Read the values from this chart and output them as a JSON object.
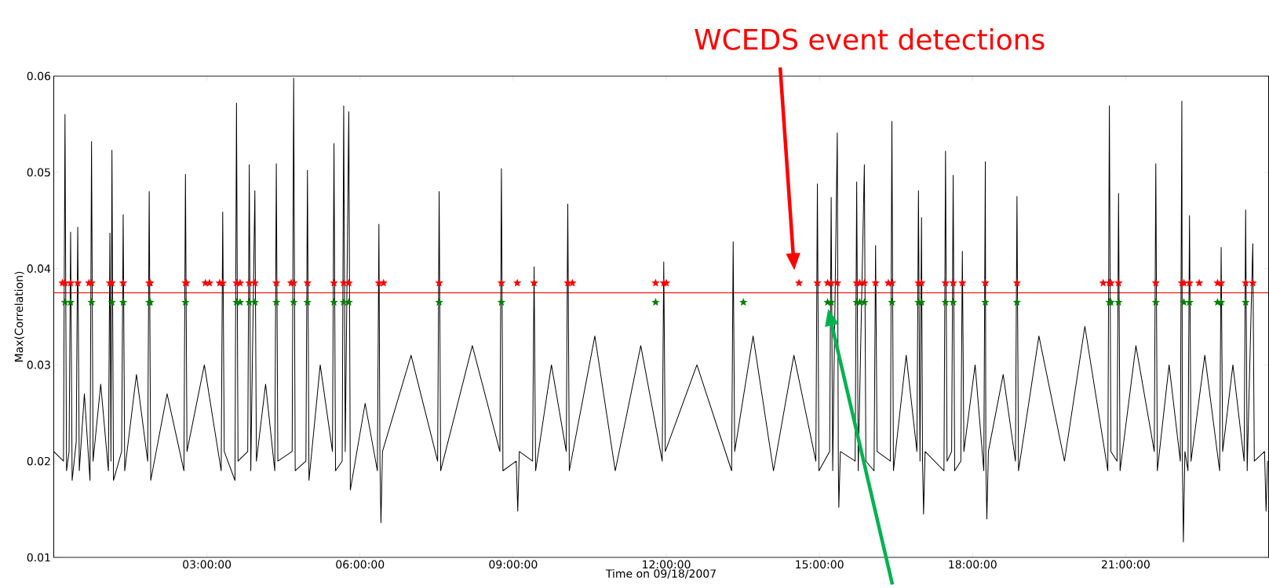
{
  "chart_data": {
    "type": "line",
    "annotations": [
      "WCEDS event detections"
    ],
    "xlabel": "Time on 09/18/2007",
    "ylabel": "Max(Correlation)",
    "xlim": [
      0,
      23.8
    ],
    "ylim": [
      0.01,
      0.06
    ],
    "xticks": [
      {
        "value": 3,
        "label": "03:00:00"
      },
      {
        "value": 6,
        "label": "06:00:00"
      },
      {
        "value": 9,
        "label": "09:00:00"
      },
      {
        "value": 12,
        "label": "12:00:00"
      },
      {
        "value": 15,
        "label": "15:00:00"
      },
      {
        "value": 18,
        "label": "18:00:00"
      },
      {
        "value": 21,
        "label": "21:00:00"
      }
    ],
    "yticks": [
      0.01,
      0.02,
      0.03,
      0.04,
      0.05,
      0.06
    ],
    "grid": false,
    "ref_lines": [
      {
        "axis": "y",
        "value": 0.0375,
        "color": "#ff0000",
        "line_style": "solid"
      }
    ],
    "series": [
      {
        "color": "#000000",
        "x": [
          0,
          0.19,
          0.22,
          0.25,
          0.3,
          0.33,
          0.36,
          0.44,
          0.47,
          0.5,
          0.6,
          0.71,
          0.74,
          0.77,
          0.92,
          1.07,
          1.1,
          1.12,
          1.14,
          1.17,
          1.33,
          1.36,
          1.39,
          1.62,
          1.84,
          1.87,
          1.9,
          2.22,
          2.55,
          2.58,
          2.61,
          2.95,
          3.28,
          3.31,
          3.34,
          3.55,
          3.58,
          3.61,
          3.8,
          3.83,
          3.86,
          3.94,
          3.97,
          4.15,
          4.33,
          4.36,
          4.39,
          4.67,
          4.7,
          4.73,
          4.94,
          4.97,
          5.0,
          5.22,
          5.46,
          5.49,
          5.52,
          5.65,
          5.68,
          5.71,
          5.78,
          5.81,
          6.1,
          6.34,
          6.37,
          6.39,
          6.41,
          6.44,
          7.0,
          7.52,
          7.55,
          7.58,
          8.2,
          8.74,
          8.77,
          8.8,
          9.06,
          9.09,
          9.12,
          9.38,
          9.41,
          9.44,
          9.75,
          10.04,
          10.07,
          10.1,
          10.6,
          11.0,
          11.5,
          11.92,
          11.95,
          11.98,
          12.6,
          13.28,
          13.31,
          13.34,
          13.7,
          14.1,
          14.5,
          14.93,
          14.96,
          14.99,
          15.2,
          15.23,
          15.26,
          15.35,
          15.37,
          15.38,
          15.41,
          15.7,
          15.73,
          15.76,
          15.88,
          15.91,
          16.07,
          16.1,
          16.13,
          16.39,
          16.42,
          16.45,
          16.7,
          16.91,
          16.94,
          16.97,
          17.0,
          17.02,
          17.04,
          17.07,
          17.44,
          17.47,
          17.5,
          17.59,
          17.62,
          17.65,
          17.77,
          17.8,
          17.83,
          18.05,
          18.22,
          18.25,
          18.26,
          18.28,
          18.31,
          18.6,
          18.84,
          18.87,
          18.9,
          19.3,
          19.8,
          20.2,
          20.65,
          20.68,
          20.71,
          20.83,
          20.86,
          20.89,
          21.2,
          21.56,
          21.59,
          21.62,
          21.85,
          22.07,
          22.1,
          22.11,
          22.13,
          22.16,
          22.22,
          22.25,
          22.28,
          22.55,
          22.84,
          22.87,
          22.9,
          23.1,
          23.32,
          23.35,
          23.38,
          23.49,
          23.52,
          23.72,
          23.75,
          23.78
        ],
        "values": [
          0.021,
          0.02,
          0.056,
          0.019,
          0.021,
          0.0438,
          0.018,
          0.022,
          0.0443,
          0.019,
          0.027,
          0.018,
          0.0532,
          0.02,
          0.028,
          0.019,
          0.0437,
          0.02,
          0.0523,
          0.018,
          0.021,
          0.0456,
          0.019,
          0.029,
          0.02,
          0.048,
          0.018,
          0.027,
          0.019,
          0.0498,
          0.021,
          0.03,
          0.019,
          0.0459,
          0.021,
          0.018,
          0.0572,
          0.02,
          0.021,
          0.0508,
          0.019,
          0.0481,
          0.02,
          0.028,
          0.019,
          0.0509,
          0.02,
          0.021,
          0.0598,
          0.019,
          0.02,
          0.0502,
          0.018,
          0.03,
          0.021,
          0.053,
          0.019,
          0.02,
          0.0569,
          0.021,
          0.0563,
          0.017,
          0.026,
          0.019,
          0.0446,
          0.02,
          0.0136,
          0.021,
          0.031,
          0.02,
          0.048,
          0.019,
          0.032,
          0.021,
          0.0504,
          0.019,
          0.02,
          0.0148,
          0.021,
          0.02,
          0.0402,
          0.019,
          0.03,
          0.021,
          0.0467,
          0.019,
          0.033,
          0.019,
          0.032,
          0.02,
          0.0407,
          0.021,
          0.03,
          0.019,
          0.0428,
          0.021,
          0.033,
          0.019,
          0.031,
          0.02,
          0.0488,
          0.019,
          0.021,
          0.0474,
          0.019,
          0.0541,
          0.02,
          0.0152,
          0.021,
          0.02,
          0.049,
          0.019,
          0.0508,
          0.02,
          0.019,
          0.0424,
          0.021,
          0.02,
          0.0553,
          0.019,
          0.031,
          0.021,
          0.0481,
          0.02,
          0.0453,
          0.02,
          0.0145,
          0.021,
          0.019,
          0.0522,
          0.02,
          0.021,
          0.0497,
          0.019,
          0.02,
          0.0418,
          0.021,
          0.03,
          0.019,
          0.0511,
          0.02,
          0.014,
          0.021,
          0.029,
          0.02,
          0.0475,
          0.019,
          0.033,
          0.02,
          0.034,
          0.019,
          0.0569,
          0.021,
          0.02,
          0.0478,
          0.019,
          0.032,
          0.021,
          0.0509,
          0.019,
          0.03,
          0.02,
          0.0574,
          0.02,
          0.0116,
          0.021,
          0.019,
          0.0455,
          0.02,
          0.031,
          0.019,
          0.0422,
          0.021,
          0.03,
          0.02,
          0.0461,
          0.019,
          0.0426,
          0.02,
          0.021,
          0.0148,
          0.02
        ]
      },
      {
        "type": "scatter",
        "marker": "star",
        "color": "#ff0000",
        "x": [
          0.17,
          0.22,
          0.33,
          0.47,
          0.69,
          0.74,
          1.1,
          1.14,
          1.36,
          1.87,
          1.89,
          2.58,
          2.6,
          2.97,
          3.05,
          3.25,
          3.31,
          3.58,
          3.65,
          3.83,
          3.94,
          4.36,
          4.65,
          4.7,
          4.97,
          5.49,
          5.68,
          5.78,
          6.37,
          6.46,
          7.55,
          8.77,
          9.08,
          9.41,
          10.07,
          10.16,
          11.79,
          11.95,
          12.0,
          14.6,
          14.96,
          15.16,
          15.23,
          15.35,
          15.73,
          15.79,
          15.88,
          16.1,
          16.35,
          16.42,
          16.94,
          17.0,
          17.47,
          17.62,
          17.8,
          18.25,
          18.87,
          20.56,
          20.68,
          20.71,
          20.86,
          21.59,
          22.1,
          22.14,
          22.25,
          22.44,
          22.8,
          22.87,
          23.35,
          23.49
        ],
        "values": [
          0.0385,
          0.0385,
          0.0385,
          0.0385,
          0.0385,
          0.0385,
          0.0385,
          0.0385,
          0.0385,
          0.0385,
          0.0385,
          0.0385,
          0.0385,
          0.0385,
          0.0385,
          0.0385,
          0.0385,
          0.0385,
          0.0385,
          0.0385,
          0.0385,
          0.0385,
          0.0385,
          0.0385,
          0.0385,
          0.0385,
          0.0385,
          0.0385,
          0.0385,
          0.0385,
          0.0385,
          0.0385,
          0.0385,
          0.0385,
          0.0385,
          0.0385,
          0.0385,
          0.0385,
          0.0385,
          0.0385,
          0.0385,
          0.0385,
          0.0385,
          0.0385,
          0.0385,
          0.0385,
          0.0385,
          0.0385,
          0.0385,
          0.0385,
          0.0385,
          0.0385,
          0.0385,
          0.0385,
          0.0385,
          0.0385,
          0.0385,
          0.0385,
          0.0385,
          0.0385,
          0.0385,
          0.0385,
          0.0385,
          0.0385,
          0.0385,
          0.0385,
          0.0385,
          0.0385,
          0.0385,
          0.0385
        ]
      },
      {
        "type": "scatter",
        "marker": "star",
        "color": "#008000",
        "x": [
          0.22,
          0.33,
          0.74,
          1.14,
          1.36,
          1.87,
          1.89,
          2.58,
          3.58,
          3.65,
          3.83,
          3.94,
          4.36,
          4.7,
          4.97,
          5.49,
          5.68,
          5.78,
          7.55,
          8.77,
          11.79,
          13.51,
          15.16,
          15.23,
          15.73,
          15.79,
          15.88,
          16.42,
          16.94,
          17.0,
          17.47,
          17.62,
          18.25,
          18.87,
          20.68,
          20.71,
          20.86,
          21.59,
          22.14,
          22.25,
          22.8,
          22.87,
          23.35
        ],
        "values": [
          0.0365,
          0.0365,
          0.0365,
          0.0365,
          0.0365,
          0.0365,
          0.0365,
          0.0365,
          0.0365,
          0.0365,
          0.0365,
          0.0365,
          0.0365,
          0.0365,
          0.0365,
          0.0365,
          0.0365,
          0.0365,
          0.0365,
          0.0365,
          0.0365,
          0.0365,
          0.0365,
          0.0365,
          0.0365,
          0.0365,
          0.0365,
          0.0365,
          0.0365,
          0.0365,
          0.0365,
          0.0365,
          0.0365,
          0.0365,
          0.0365,
          0.0365,
          0.0365,
          0.0365,
          0.0365,
          0.0365,
          0.0365,
          0.0365,
          0.0365
        ]
      }
    ]
  }
}
